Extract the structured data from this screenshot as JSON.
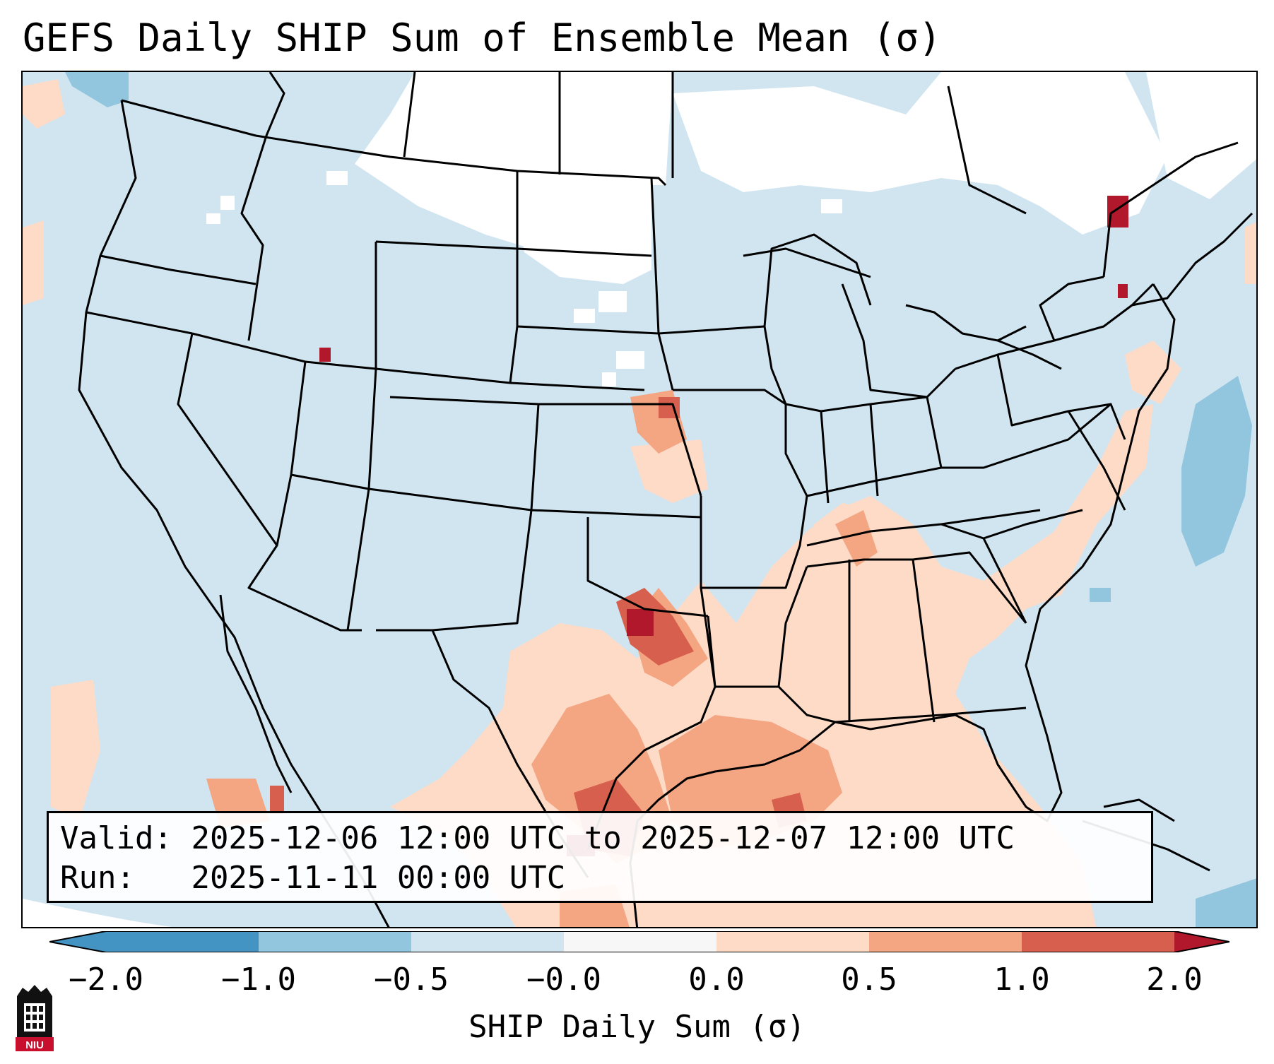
{
  "title": "GEFS Daily SHIP Sum of Ensemble Mean (σ)",
  "info": {
    "valid_label": "Valid:",
    "valid_value": "2025-12-06 12:00 UTC to 2025-12-07 12:00 UTC",
    "run_label": "Run:",
    "run_value": "2025-11-11 00:00 UTC"
  },
  "colorbar": {
    "label": "SHIP Daily Sum (σ)",
    "ticks": [
      "−2.0",
      "−1.0",
      "−0.5",
      "−0.0",
      "0.0",
      "0.5",
      "1.0",
      "2.0"
    ],
    "colors": [
      "#4393c3",
      "#92c5de",
      "#d1e5f0",
      "#f7f7f7",
      "#fddbc7",
      "#f4a582",
      "#d6604d",
      "#b2182b"
    ]
  },
  "map": {
    "background_color": "#d1e5f0",
    "projection_edge_color": "#ffffff",
    "boundary_color": "#000000"
  },
  "logo": {
    "text": "NIU"
  }
}
